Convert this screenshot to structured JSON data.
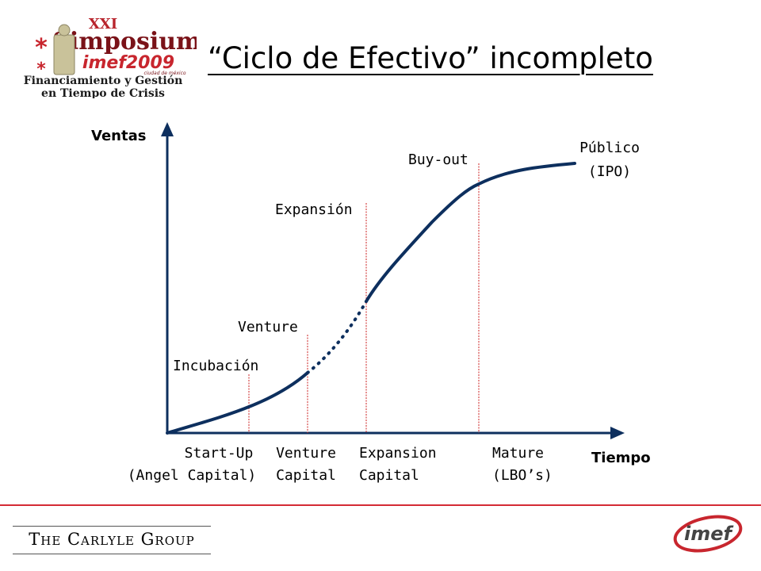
{
  "slide": {
    "title": "“Ciclo de Efectivo” incompleto"
  },
  "logo_simposium": {
    "edition": "XXI",
    "name": "Simposium",
    "brand_year": "imef2009",
    "city": "ciudad de méxico",
    "line1": "Financiamiento y Gestión",
    "line2": "en Tiempo de Crisis"
  },
  "diagram": {
    "y_axis_label": "Ventas",
    "x_axis_label": "Tiempo",
    "stages": [
      {
        "label": "Incubación",
        "bottom_lines": [
          "Start-Up",
          "(Angel Capital)"
        ]
      },
      {
        "label": "Venture",
        "bottom_lines": [
          "Venture",
          "Capital"
        ]
      },
      {
        "label": "Expansión",
        "bottom_lines": [
          "Expansion",
          "Capital"
        ]
      },
      {
        "label": "Buy-out",
        "bottom_lines": [
          "Mature",
          "(LBO’s)"
        ]
      }
    ],
    "end_label": [
      "Público",
      "(IPO)"
    ],
    "curve_color": "#0d2f5e",
    "marker_color": "#cc2222"
  },
  "footer": {
    "company": "The Carlyle Group",
    "logo_text": "imef",
    "rule_color": "#d42b35"
  }
}
